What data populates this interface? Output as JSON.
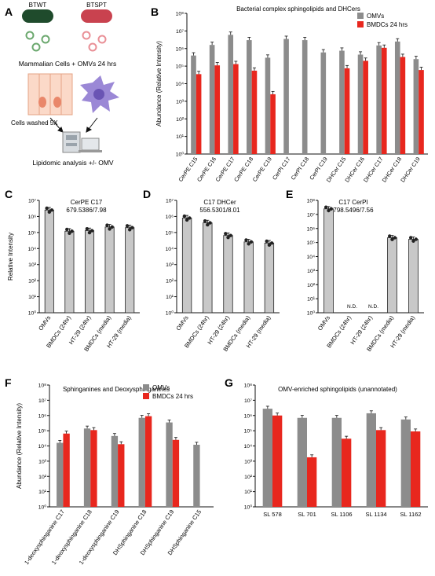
{
  "panel_letters": [
    "A",
    "B",
    "C",
    "D",
    "E",
    "F",
    "G"
  ],
  "schematic": {
    "strain_labels": [
      "BTWT",
      "BTSPT"
    ],
    "step1": "Mammalian Cells + OMVs 24 hrs",
    "step2": "Cells washed 5X",
    "step3": "Lipidomic analysis +/- OMV"
  },
  "colors": {
    "omv": "#8c8c8c",
    "bmdc": "#e8271e",
    "single_bar": "#c8c8c8"
  },
  "chart_data": [
    {
      "panel": "B",
      "type": "bar",
      "title": "Bacterial complex sphingolipids and DHCers",
      "ylabel": "Abundance (Relative Intensity)",
      "yscale": "log",
      "ylim": [
        1,
        100000000
      ],
      "ytick_labels": [
        "10⁰",
        "10¹",
        "10²",
        "10³",
        "10⁴",
        "10⁵",
        "10⁶",
        "10⁷",
        "10⁸"
      ],
      "legend_position": "top-right",
      "categories": [
        "CerPE C15",
        "CerPE C16",
        "CerPE C17",
        "CerPE C18",
        "CerPE C19",
        "CerPI C17",
        "CerPI C18",
        "CerPI C19",
        "DHCer C15",
        "DHCer C16",
        "DHCer C17",
        "DHCer C18",
        "DHCer C19"
      ],
      "series": [
        {
          "name": "OMVs",
          "values": [
            400000,
            1600000,
            6000000,
            3000000,
            300000,
            3500000,
            3000000,
            600000,
            750000,
            450000,
            1500000,
            2500000,
            250000
          ]
        },
        {
          "name": "BMDCs 24 hrs",
          "values": [
            35000,
            110000,
            130000,
            55000,
            2500,
            null,
            null,
            null,
            75000,
            200000,
            1100000,
            330000,
            60000
          ]
        }
      ]
    },
    {
      "panel": "C",
      "type": "bar",
      "title": "CerPE C17",
      "subtitle": "679.5386/7.98",
      "ylabel": "Relative Intensity",
      "yscale": "log",
      "ylim": [
        1,
        10000000
      ],
      "ytick_labels": [
        "10⁰",
        "10¹",
        "10²",
        "10³",
        "10⁴",
        "10⁵",
        "10⁶",
        "10⁷"
      ],
      "categories": [
        "OMVs",
        "BMDCs (24hr)",
        "HT-29 (24hr)",
        "BMDCs (media)",
        "HT-29 (media)"
      ],
      "values": [
        2500000,
        120000,
        130000,
        220000,
        200000
      ]
    },
    {
      "panel": "D",
      "type": "bar",
      "title": "C17 DHCer",
      "subtitle": "556.5301/8.01",
      "yscale": "log",
      "ylim": [
        1,
        10000000
      ],
      "ytick_labels": [
        "10⁰",
        "10¹",
        "10²",
        "10³",
        "10⁴",
        "10⁵",
        "10⁶",
        "10⁷"
      ],
      "categories": [
        "OMVs",
        "BMDCs (24hr)",
        "HT-29 (24hr)",
        "BMDCs (media)",
        "HT-29 (media)"
      ],
      "values": [
        800000,
        400000,
        65000,
        26000,
        22000
      ]
    },
    {
      "panel": "E",
      "type": "bar",
      "title": "C17 CerPI",
      "subtitle": "798.5496/7.56",
      "yscale": "log",
      "ylim": [
        1,
        100000000
      ],
      "ytick_labels": [
        "10⁰",
        "10¹",
        "10²",
        "10³",
        "10⁴",
        "10⁵",
        "10⁶",
        "10⁷",
        "10⁸"
      ],
      "categories": [
        "OMVs",
        "BMDCs (24hr)",
        "HT-29 (24hr)",
        "BMDCs (media)",
        "HT-29 (media)"
      ],
      "values": [
        25000000,
        null,
        null,
        220000,
        170000
      ],
      "annotations": [
        "N.D.",
        "N.D."
      ]
    },
    {
      "panel": "F",
      "type": "bar",
      "title": "Sphinganines and Deoxysphinganines",
      "ylabel": "Abundance (Relative Intensity)",
      "yscale": "log",
      "ylim": [
        1,
        100000000
      ],
      "ytick_labels": [
        "10⁰",
        "10¹",
        "10²",
        "10³",
        "10⁴",
        "10⁵",
        "10⁶",
        "10⁷",
        "10⁸"
      ],
      "legend_position": "top-right",
      "categories": [
        "1-deoxysphinganine C17",
        "1-deoxysphinganine C18",
        "1-deoxysphinganine C19",
        "DHSphinganine C18",
        "DHSphinganine C19",
        "DHSphinganine C15"
      ],
      "series": [
        {
          "name": "OMVs",
          "values": [
            16000,
            140000,
            45000,
            700000,
            350000,
            12000
          ]
        },
        {
          "name": "BMDCs 24 hrs",
          "values": [
            65000,
            110000,
            13000,
            900000,
            25000,
            null
          ]
        }
      ]
    },
    {
      "panel": "G",
      "type": "bar",
      "title": "OMV-enriched sphingolipids (unannotated)",
      "yscale": "log",
      "ylim": [
        1,
        100000000
      ],
      "ytick_labels": [
        "10⁰",
        "10¹",
        "10²",
        "10³",
        "10⁴",
        "10⁵",
        "10⁶",
        "10⁷",
        "10⁸"
      ],
      "categories": [
        "SL 578",
        "SL 701",
        "SL 1106",
        "SL 1134",
        "SL 1162"
      ],
      "series": [
        {
          "name": "OMVs",
          "values": [
            2800000,
            700000,
            700000,
            1400000,
            550000
          ]
        },
        {
          "name": "BMDCs 24 hrs",
          "values": [
            1000000,
            1800,
            30000,
            110000,
            90000
          ]
        }
      ]
    }
  ]
}
